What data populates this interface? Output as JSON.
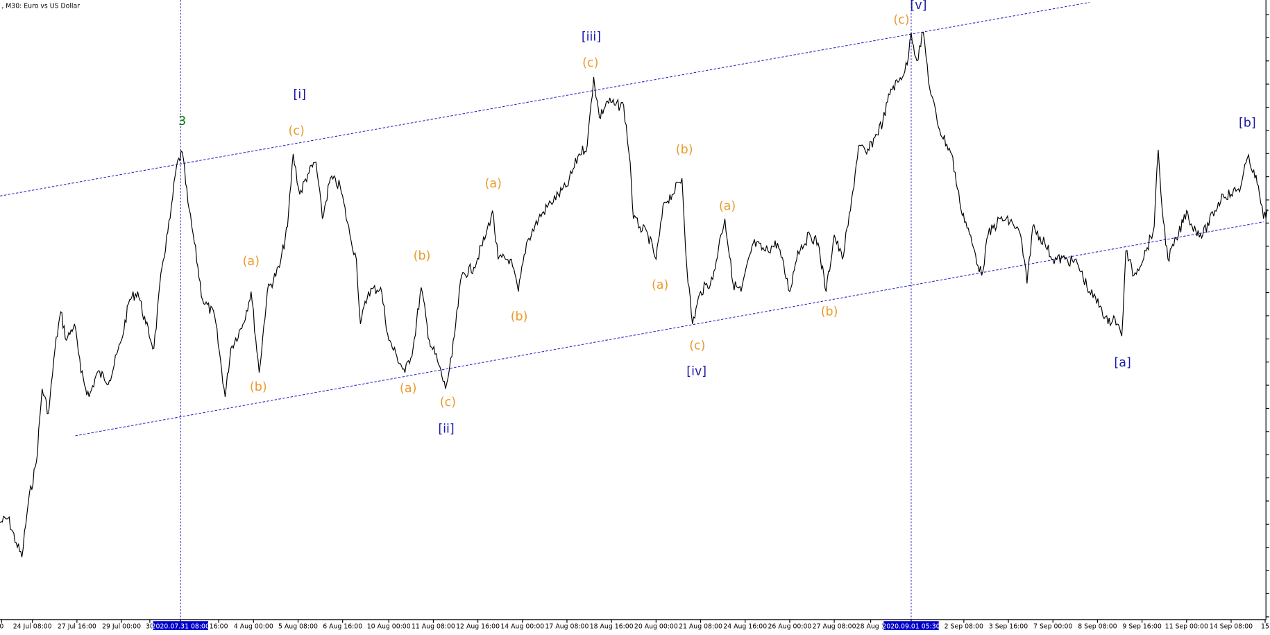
{
  "header": {
    "title": ", M30:  Euro vs US Dollar"
  },
  "xaxis": {
    "labels": [
      "0",
      "24 Jul 08:00",
      "27 Jul 16:00",
      "29 Jul 00:00",
      "30",
      "2020.07.31 08:00",
      "16:00",
      "4 Aug 00:00",
      "5 Aug 08:00",
      "6 Aug 16:00",
      "10 Aug 00:00",
      "11 Aug 08:00",
      "12 Aug 16:00",
      "14 Aug 00:00",
      "17 Aug 08:00",
      "18 Aug 16:00",
      "20 Aug 00:00",
      "21 Aug 08:00",
      "24 Aug 16:00",
      "26 Aug 00:00",
      "27 Aug 08:00",
      "28 Aug 1",
      "2020.09.01 05:30",
      "2 Sep 08:00",
      "3 Sep 16:00",
      "7 Sep 00:00",
      "8 Sep 08:00",
      "9 Sep 16:00",
      "11 Sep 00:00",
      "14 Sep 08:00",
      "15"
    ]
  },
  "wave_labels": [
    "3",
    "[i]",
    "(c)",
    "(a)",
    "(b)",
    "(b)",
    "(a)",
    "(c)",
    "[ii]",
    "(a)",
    "(b)",
    "[iii]",
    "(c)",
    "(b)",
    "(a)",
    "(c)",
    "[iv]",
    "(a)",
    "(b)",
    "(c)",
    "[v]",
    "[a]",
    "[b]"
  ]
}
